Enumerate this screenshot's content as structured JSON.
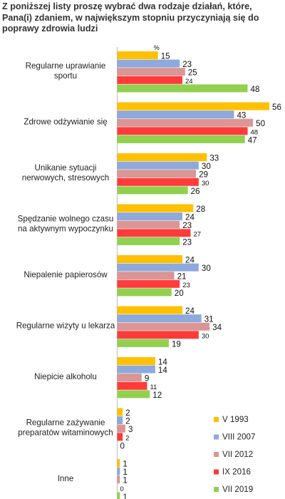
{
  "chart_data": {
    "type": "bar",
    "orientation": "horizontal",
    "title": "Z poniższej listy proszę wybrać dwa rodzaje działań, które, Pana(i) zdaniem, w największym stopniu przyczyniają się do poprawy zdrowia ludzi",
    "unit": "%",
    "categories": [
      "Regularne uprawianie sportu",
      "Zdrowe odżywianie się",
      "Unikanie sytuacji nerwowych, stresowych",
      "Spędzanie wolnego czasu na aktywnym wypoczynku",
      "Niepalenie papierosów",
      "Regularne wizyty u lekarza",
      "Niepicie alkoholu",
      "Regularne zażywanie preparatów witaminowych",
      "Inne"
    ],
    "category_lines": [
      [
        "Regularne uprawianie",
        "sportu"
      ],
      [
        "Zdrowe odżywianie się"
      ],
      [
        "Unikanie sytuacji",
        "nerwowych, stresowych"
      ],
      [
        "Spędzanie wolnego czasu",
        "na aktywnym wypoczynku"
      ],
      [
        "Niepalenie papierosów"
      ],
      [
        "Regularne wizyty u lekarza"
      ],
      [
        "Niepicie alkoholu"
      ],
      [
        "Regularne zażywanie",
        "preparatów witaminowych"
      ],
      [
        "Inne"
      ]
    ],
    "series": [
      {
        "name": "V 1993",
        "color": "#FFC000",
        "values": [
          15,
          56,
          33,
          28,
          24,
          24,
          14,
          2,
          1
        ]
      },
      {
        "name": "VIII 2007",
        "color": "#8EA9DB",
        "values": [
          23,
          43,
          30,
          24,
          30,
          31,
          14,
          2,
          1
        ]
      },
      {
        "name": "VII 2012",
        "color": "#DA9694",
        "values": [
          25,
          50,
          29,
          23,
          21,
          34,
          9,
          3,
          1
        ]
      },
      {
        "name": "IX 2016",
        "color": "#FF3B3B",
        "values": [
          24,
          48,
          30,
          27,
          23,
          30,
          11,
          2,
          0
        ]
      },
      {
        "name": "VII 2019",
        "color": "#92D050",
        "values": [
          48,
          47,
          26,
          23,
          20,
          19,
          12,
          0,
          1
        ]
      }
    ],
    "xlim": [
      0,
      56
    ],
    "legend_position": "bottom-right",
    "grid": false
  }
}
